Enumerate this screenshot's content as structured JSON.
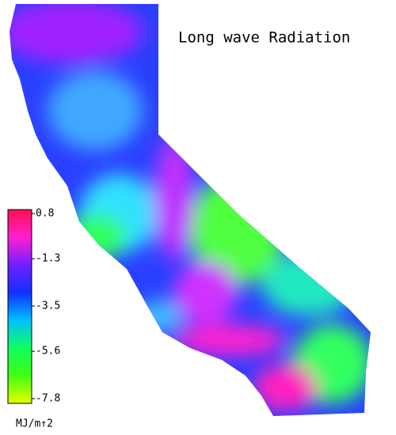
{
  "title": "Long wave Radiation",
  "colorbar": {
    "lim": [
      -7.8,
      0.8
    ],
    "ticks": [
      0.8,
      -1.3,
      -3.5,
      -5.6,
      -7.8
    ],
    "colors": [
      "#ff1050",
      "#ff20d0",
      "#7020ff",
      "#1030ff",
      "#00c0ff",
      "#10ff60",
      "#40ff10",
      "#e8ff00"
    ],
    "unit": "MJ/m↑2"
  }
}
